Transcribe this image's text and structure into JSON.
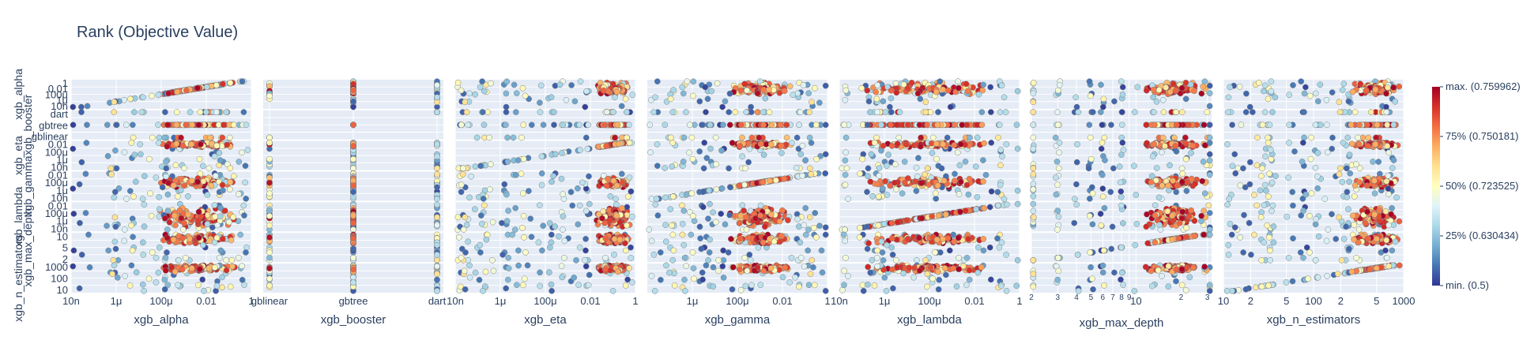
{
  "chart_data": {
    "type": "scatter",
    "title": "Rank (Objective Value)",
    "params": [
      "xgb_alpha",
      "xgb_booster",
      "xgb_eta",
      "xgb_gamma",
      "xgb_lambda",
      "xgb_max_depth",
      "xgb_n_estimators"
    ],
    "axes": {
      "xgb_alpha": {
        "scale": "log",
        "range": [
          1e-08,
          1
        ],
        "ticks": [
          {
            "v": 1e-08,
            "t": "10n"
          },
          {
            "v": 1e-06,
            "t": "1μ"
          },
          {
            "v": 0.0001,
            "t": "100μ"
          },
          {
            "v": 0.01,
            "t": "0.01"
          },
          {
            "v": 1,
            "t": "1"
          }
        ]
      },
      "xgb_booster": {
        "scale": "category",
        "categories": [
          "gblinear",
          "gbtree",
          "dart"
        ]
      },
      "xgb_eta": {
        "scale": "log",
        "range": [
          1e-08,
          1
        ],
        "ticks": [
          {
            "v": 1e-08,
            "t": "10n"
          },
          {
            "v": 1e-06,
            "t": "1μ"
          },
          {
            "v": 0.0001,
            "t": "100μ"
          },
          {
            "v": 0.01,
            "t": "0.01"
          },
          {
            "v": 1,
            "t": "1"
          }
        ]
      },
      "xgb_gamma": {
        "scale": "log",
        "range": [
          1e-08,
          1
        ],
        "ticks": [
          {
            "v": 1e-06,
            "t": "1μ"
          },
          {
            "v": 0.0001,
            "t": "100μ"
          },
          {
            "v": 0.01,
            "t": "0.01"
          },
          {
            "v": 1,
            "t": "1"
          }
        ]
      },
      "xgb_lambda": {
        "scale": "log",
        "range": [
          1e-08,
          1
        ],
        "ticks": [
          {
            "v": 1e-08,
            "t": "10n"
          },
          {
            "v": 1e-06,
            "t": "1μ"
          },
          {
            "v": 0.0001,
            "t": "100μ"
          },
          {
            "v": 0.01,
            "t": "0.01"
          },
          {
            "v": 1,
            "t": "1"
          }
        ]
      },
      "xgb_max_depth": {
        "scale": "log",
        "range": [
          2,
          32
        ],
        "ticks": [
          {
            "v": 2,
            "t": "2"
          },
          {
            "v": 3,
            "t": "3"
          },
          {
            "v": 4,
            "t": "4"
          },
          {
            "v": 5,
            "t": "5"
          },
          {
            "v": 6,
            "t": "6"
          },
          {
            "v": 7,
            "t": "7"
          },
          {
            "v": 8,
            "t": "8"
          },
          {
            "v": 9,
            "t": "9"
          },
          {
            "v": 10,
            "t": "10"
          },
          {
            "v": 20,
            "t": "2"
          },
          {
            "v": 30,
            "t": "3"
          }
        ]
      },
      "xgb_n_estimators": {
        "scale": "log",
        "range": [
          10,
          1000
        ],
        "ticks": [
          {
            "v": 10,
            "t": "10"
          },
          {
            "v": 20,
            "t": "2"
          },
          {
            "v": 50,
            "t": "5"
          },
          {
            "v": 100,
            "t": "100"
          },
          {
            "v": 200,
            "t": "2"
          },
          {
            "v": 500,
            "t": "5"
          },
          {
            "v": 1000,
            "t": "1000"
          }
        ]
      }
    },
    "row_ticks": {
      "xgb_alpha": [
        "1",
        "0.01",
        "100μ",
        "1μ",
        "10n"
      ],
      "xgb_booster": [
        "dart",
        "gbtree",
        "gblinear"
      ],
      "xgb_eta": [
        "0.01",
        "100μ",
        "1μ",
        "10n"
      ],
      "xgb_gamma": [
        "0.01",
        "100μ",
        "1μ",
        "10n"
      ],
      "xgb_lambda": [
        "0.01",
        "100μ",
        "1μ",
        "10n"
      ],
      "xgb_max_depth": [
        "10",
        "5",
        "2"
      ],
      "xgb_n_estimators": [
        "1000",
        "100",
        "10"
      ]
    },
    "colorbar": {
      "min": 0.5,
      "max": 0.759962,
      "labels": [
        "max. (0.759962)",
        "75% (0.750181)",
        "50% (0.723525)",
        "25% (0.630434)",
        "min. (0.5)"
      ],
      "colorscale": [
        "#313695",
        "#4575b4",
        "#74add1",
        "#abd9e9",
        "#e0f3f8",
        "#ffffbf",
        "#fee090",
        "#fdae61",
        "#f46d43",
        "#d73027",
        "#a50026"
      ]
    },
    "n_trials": 150,
    "grid": true
  },
  "colors": {
    "plot_bg": "#e5ecf6",
    "grid": "#ffffff",
    "text": "#2a3f5f",
    "marker_edge": "#7f7f7f"
  }
}
